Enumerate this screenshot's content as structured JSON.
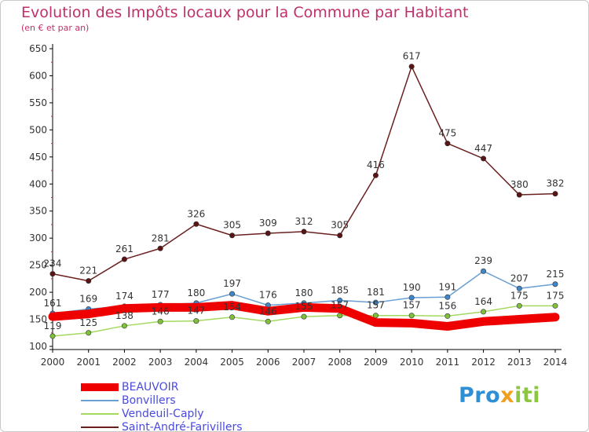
{
  "title": "Evolution des Impôts locaux pour la Commune par Habitant",
  "subtitle": "(en € et par an)",
  "brand": {
    "part1": "Pro",
    "part2": "x",
    "part3": "iti"
  },
  "chart_data": {
    "type": "line",
    "xlabel": "",
    "ylabel": "",
    "ylim": [
      100,
      650
    ],
    "yticks": [
      100,
      150,
      200,
      250,
      300,
      350,
      400,
      450,
      500,
      550,
      600,
      650
    ],
    "categories": [
      "2000",
      "2001",
      "2002",
      "2003",
      "2004",
      "2005",
      "2006",
      "2007",
      "2008",
      "2009",
      "2010",
      "2011",
      "2012",
      "2013",
      "2014"
    ],
    "grid": false,
    "legend_position": "bottom-left",
    "series": [
      {
        "name": "BEAUVOIR",
        "color": "#ee0000",
        "width": 11,
        "markers": false,
        "labels": false,
        "values": [
          155,
          160,
          170,
          172,
          172,
          176,
          165,
          172,
          170,
          144,
          143,
          137,
          146,
          150,
          154
        ]
      },
      {
        "name": "Bonvillers",
        "color": "#6a9fd3",
        "width": 1.5,
        "markers": true,
        "marker_color": "#3d87cc",
        "labels": true,
        "values": [
          161,
          169,
          174,
          177,
          180,
          197,
          176,
          180,
          185,
          181,
          190,
          191,
          239,
          207,
          215
        ]
      },
      {
        "name": "Vendeuil-Caply",
        "color": "#a3d95f",
        "width": 1.5,
        "markers": true,
        "marker_color": "#7fc03a",
        "labels": true,
        "values": [
          119,
          125,
          138,
          146,
          147,
          154,
          146,
          155,
          157,
          157,
          157,
          156,
          164,
          175,
          175
        ]
      },
      {
        "name": "Saint-André-Farivillers",
        "color": "#6b2020",
        "width": 1.5,
        "markers": true,
        "marker_color": "#5a1414",
        "labels": true,
        "values": [
          234,
          221,
          261,
          281,
          326,
          305,
          309,
          312,
          305,
          416,
          617,
          475,
          447,
          380,
          382
        ]
      }
    ]
  }
}
